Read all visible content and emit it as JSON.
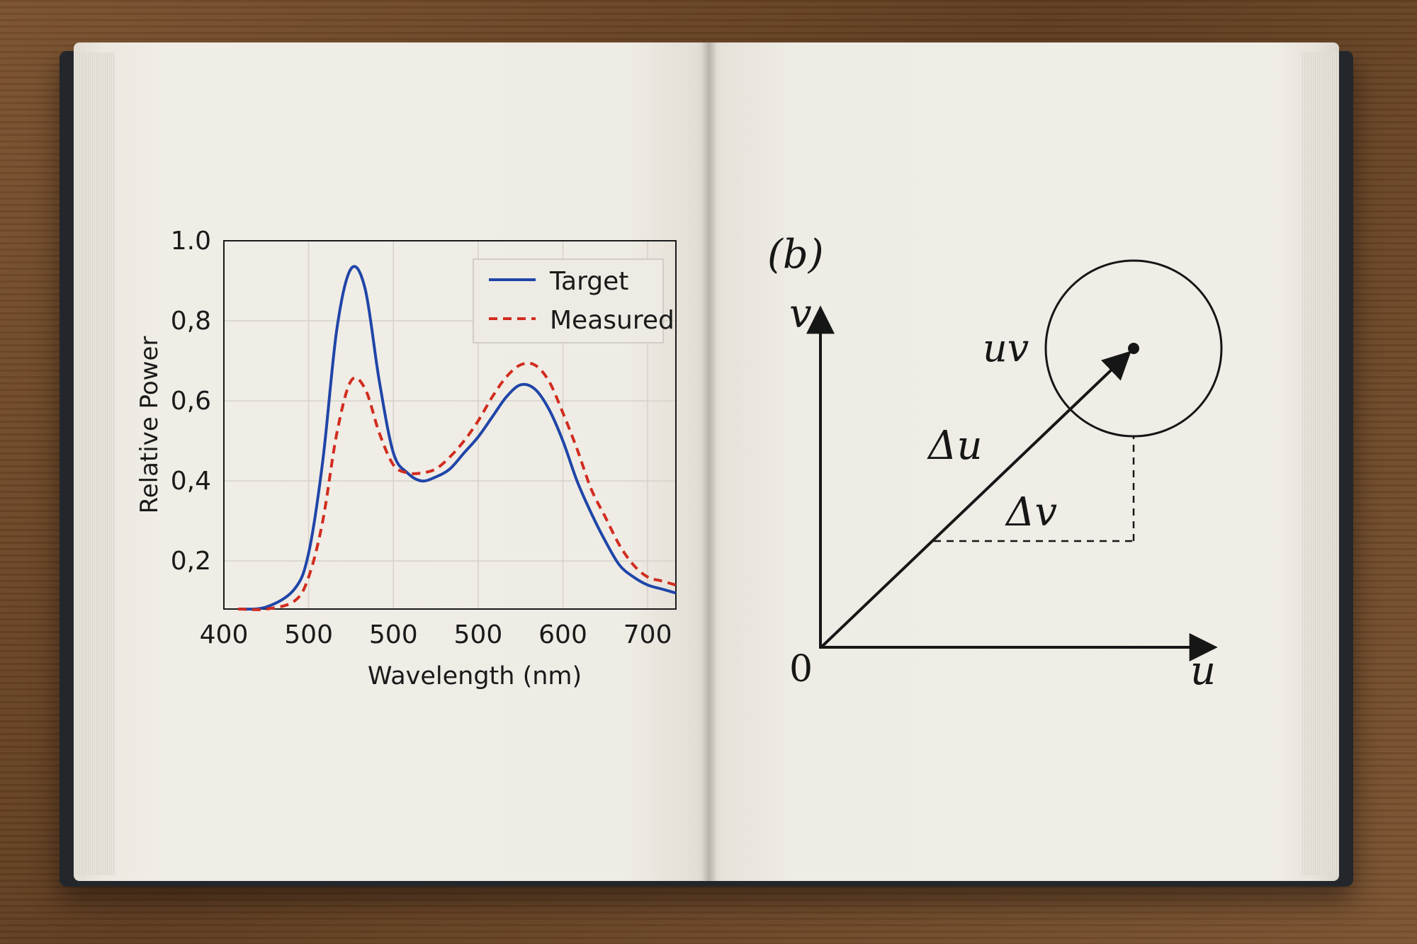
{
  "chart_data": {
    "type": "line",
    "title": "",
    "xlabel": "Wavelength (nm)",
    "ylabel": "Relative Power",
    "x_tick_labels": [
      "400",
      "500",
      "500",
      "500",
      "600",
      "700"
    ],
    "y_tick_labels": [
      "1.0",
      "0,8",
      "0,6",
      "0,4",
      "0,2"
    ],
    "xlim": [
      400,
      720
    ],
    "ylim": [
      0.08,
      1.0
    ],
    "grid": true,
    "legend_position": "top-right",
    "x": [
      410,
      430,
      450,
      460,
      470,
      480,
      490,
      500,
      510,
      520,
      530,
      540,
      550,
      560,
      570,
      580,
      590,
      600,
      610,
      620,
      630,
      640,
      650,
      660,
      670,
      680,
      690,
      700,
      710,
      720
    ],
    "series": [
      {
        "name": "Target",
        "color": "#1f45a8",
        "style": "solid",
        "values": [
          0.08,
          0.085,
          0.13,
          0.22,
          0.45,
          0.78,
          0.93,
          0.88,
          0.65,
          0.47,
          0.42,
          0.4,
          0.41,
          0.43,
          0.47,
          0.51,
          0.56,
          0.61,
          0.64,
          0.63,
          0.58,
          0.5,
          0.4,
          0.32,
          0.25,
          0.19,
          0.16,
          0.14,
          0.13,
          0.12
        ]
      },
      {
        "name": "Measured",
        "color": "#d12c1f",
        "style": "dashed",
        "values": [
          0.08,
          0.08,
          0.1,
          0.16,
          0.3,
          0.52,
          0.65,
          0.63,
          0.52,
          0.44,
          0.42,
          0.42,
          0.43,
          0.46,
          0.5,
          0.55,
          0.61,
          0.66,
          0.69,
          0.69,
          0.65,
          0.57,
          0.48,
          0.38,
          0.31,
          0.24,
          0.19,
          0.16,
          0.15,
          0.14
        ]
      }
    ]
  },
  "diagram": {
    "panel_label": "(b)",
    "axis_v": "v",
    "axis_u": "u",
    "origin": "0",
    "point_label": "uv",
    "delta_u": "Δu",
    "delta_v": "Δv"
  },
  "colors": {
    "table": "#6b4527",
    "cover": "#23272b",
    "paper": "#efece5",
    "ink": "#161616"
  }
}
